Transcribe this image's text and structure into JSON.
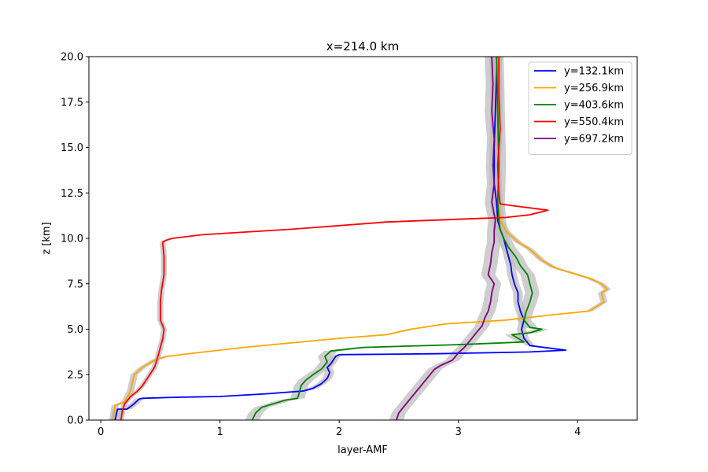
{
  "chart_data": {
    "type": "line",
    "title": "x=214.0 km",
    "xlabel": "layer-AMF",
    "ylabel": "z [km]",
    "xlim": [
      -0.1,
      4.5
    ],
    "ylim": [
      0,
      20
    ],
    "x_ticks": [
      0,
      1,
      2,
      3,
      4
    ],
    "y_ticks": [
      0.0,
      2.5,
      5.0,
      7.5,
      10.0,
      12.5,
      15.0,
      17.5,
      20.0
    ],
    "x_tick_labels": [
      "0",
      "1",
      "2",
      "3",
      "4"
    ],
    "y_tick_labels": [
      "0.0",
      "2.5",
      "5.0",
      "7.5",
      "10.0",
      "12.5",
      "15.0",
      "17.5",
      "20.0"
    ],
    "grid": false,
    "legend_position": "top-right",
    "uncertainty_band_color": "#bdbdbd",
    "series": [
      {
        "name": "y=132.1km",
        "color": "#0000ff",
        "band": 0.04,
        "x": [
          0.12,
          0.13,
          0.14,
          0.22,
          0.28,
          0.32,
          0.35,
          0.6,
          1.0,
          1.4,
          1.7,
          1.78,
          1.85,
          1.9,
          1.92,
          1.9,
          1.93,
          1.95,
          1.97,
          2.0,
          2.8,
          3.6,
          3.9,
          3.6,
          3.55,
          3.53,
          3.55,
          3.52,
          3.5,
          3.5,
          3.47,
          3.45,
          3.44,
          3.42,
          3.4,
          3.38,
          3.35,
          3.33,
          3.32,
          3.3,
          3.3,
          3.31,
          3.32,
          3.33
        ],
        "y": [
          0.0,
          0.3,
          0.6,
          0.6,
          0.9,
          1.15,
          1.2,
          1.25,
          1.3,
          1.45,
          1.6,
          1.75,
          2.0,
          2.3,
          2.6,
          2.9,
          3.1,
          3.3,
          3.5,
          3.6,
          3.65,
          3.75,
          3.85,
          4.1,
          4.5,
          5.0,
          5.5,
          6.0,
          6.5,
          7.0,
          7.5,
          8.0,
          8.5,
          9.0,
          9.5,
          10.0,
          10.5,
          11.0,
          12.0,
          13.0,
          15.0,
          17.0,
          19.0,
          20.0
        ]
      },
      {
        "name": "y=256.9km",
        "color": "#ffa500",
        "band": 0.03,
        "x": [
          0.1,
          0.12,
          0.2,
          0.25,
          0.28,
          0.35,
          0.45,
          0.55,
          0.8,
          1.2,
          2.0,
          2.4,
          2.6,
          2.9,
          3.4,
          3.8,
          4.1,
          4.22,
          4.2,
          4.25,
          4.2,
          4.1,
          3.95,
          3.8,
          3.7,
          3.6,
          3.5,
          3.4,
          3.35,
          3.34,
          3.33,
          3.33,
          3.34,
          3.33
        ],
        "y": [
          0.0,
          0.8,
          1.0,
          1.6,
          2.5,
          2.9,
          3.3,
          3.5,
          3.7,
          4.0,
          4.5,
          4.7,
          5.0,
          5.3,
          5.5,
          5.8,
          6.0,
          6.5,
          7.0,
          7.2,
          7.5,
          7.8,
          8.1,
          8.4,
          8.8,
          9.4,
          9.8,
          10.4,
          11.0,
          12.0,
          14.0,
          16.0,
          18.0,
          20.0
        ]
      },
      {
        "name": "y=403.6km",
        "color": "#008000",
        "band": 0.06,
        "x": [
          1.27,
          1.3,
          1.35,
          1.45,
          1.55,
          1.65,
          1.67,
          1.68,
          1.72,
          1.78,
          1.85,
          1.9,
          1.88,
          1.93,
          2.2,
          3.0,
          3.55,
          3.45,
          3.6,
          3.7,
          3.6,
          3.55,
          3.57,
          3.6,
          3.62,
          3.6,
          3.58,
          3.52,
          3.48,
          3.42,
          3.38,
          3.35,
          3.34,
          3.33,
          3.34,
          3.33,
          3.32
        ],
        "y": [
          0.0,
          0.4,
          0.7,
          0.9,
          1.1,
          1.2,
          1.6,
          1.9,
          2.2,
          2.5,
          2.8,
          3.2,
          3.5,
          3.8,
          4.0,
          4.15,
          4.3,
          4.7,
          4.8,
          5.0,
          5.1,
          5.5,
          6.0,
          6.5,
          7.0,
          7.5,
          8.0,
          8.5,
          9.0,
          9.5,
          10.0,
          10.5,
          11.0,
          12.0,
          14.0,
          17.0,
          20.0
        ]
      },
      {
        "name": "y=550.4km",
        "color": "#ff0000",
        "band": 0.025,
        "x": [
          0.17,
          0.18,
          0.2,
          0.25,
          0.3,
          0.35,
          0.4,
          0.45,
          0.47,
          0.5,
          0.52,
          0.53,
          0.5,
          0.5,
          0.51,
          0.53,
          0.53,
          0.52,
          0.52,
          0.55,
          0.6,
          0.85,
          1.6,
          2.4,
          3.0,
          3.4,
          3.6,
          3.75,
          3.45,
          3.35,
          3.34,
          3.33,
          3.35,
          3.34,
          3.34
        ],
        "y": [
          0.0,
          0.5,
          0.9,
          1.3,
          1.55,
          1.9,
          2.4,
          2.9,
          3.3,
          4.0,
          4.5,
          5.0,
          5.5,
          6.5,
          7.2,
          8.0,
          9.0,
          9.7,
          9.8,
          9.9,
          10.0,
          10.2,
          10.5,
          10.9,
          11.05,
          11.15,
          11.3,
          11.55,
          11.8,
          11.9,
          12.5,
          14.0,
          16.0,
          18.0,
          20.0
        ]
      },
      {
        "name": "y=697.2km",
        "color": "#800080",
        "band": 0.06,
        "x": [
          2.48,
          2.5,
          2.55,
          2.6,
          2.65,
          2.7,
          2.75,
          2.8,
          2.85,
          2.95,
          3.0,
          3.05,
          3.1,
          3.15,
          3.2,
          3.22,
          3.25,
          3.27,
          3.28,
          3.3,
          3.25,
          3.27,
          3.28,
          3.3,
          3.3,
          3.31,
          3.28,
          3.3,
          3.29,
          3.3,
          3.28,
          3.29,
          3.28
        ],
        "y": [
          0.0,
          0.4,
          0.8,
          1.2,
          1.6,
          2.0,
          2.4,
          2.8,
          3.0,
          3.3,
          3.7,
          4.0,
          4.4,
          4.8,
          5.2,
          5.6,
          6.0,
          6.5,
          7.0,
          7.5,
          8.0,
          8.6,
          9.2,
          9.8,
          10.4,
          11.0,
          12.0,
          13.0,
          14.0,
          15.5,
          17.0,
          18.5,
          20.0
        ]
      }
    ]
  }
}
